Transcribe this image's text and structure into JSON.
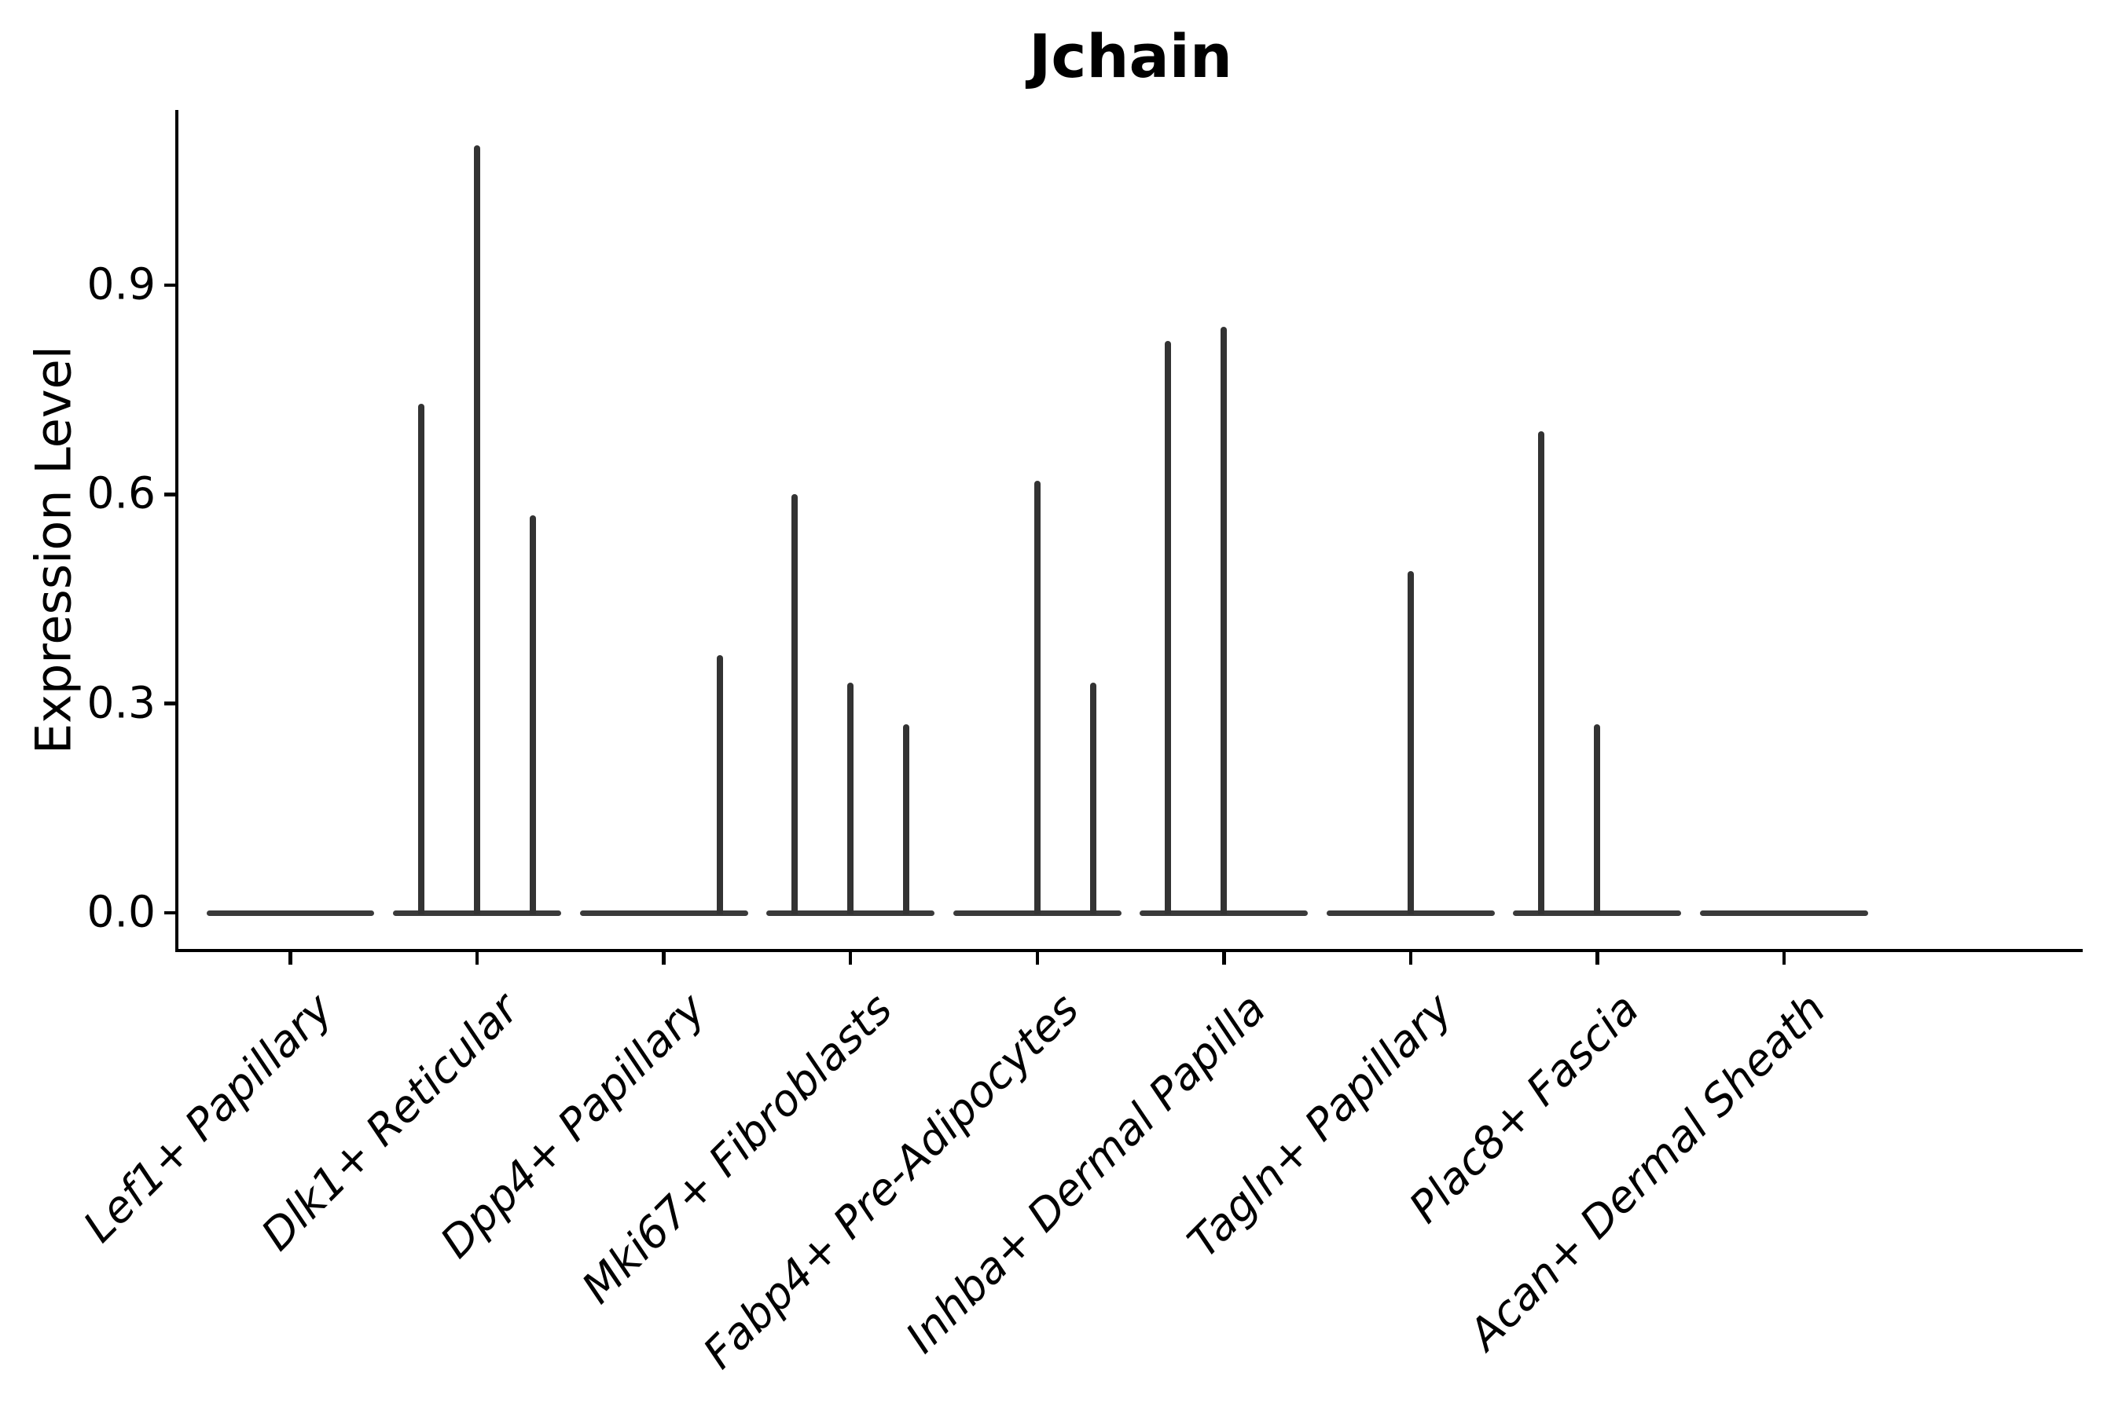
{
  "title": "Jchain",
  "y_axis": {
    "label": "Expression Level",
    "tick_labels": [
      "0.0",
      "0.3",
      "0.6",
      "0.9"
    ]
  },
  "chart_data": {
    "type": "violin",
    "title": "Jchain",
    "ylabel": "Expression Level",
    "xlabel": "",
    "yticks": [
      0.0,
      0.3,
      0.6,
      0.9
    ],
    "ylim": [
      -0.054,
      1.151
    ],
    "grid": false,
    "legend": "none",
    "violin_outline_color": "#3a3a3a",
    "axis_color": "#000000",
    "violin_width_units": 0.9,
    "sub_violin_offsets": [
      -0.3,
      0,
      0.3
    ],
    "categories": [
      "Lef1+ Papillary",
      "Dlk1+ Reticular",
      "Dpp4+ Papillary",
      "Mki67+ Fibroblasts",
      "Fabp4+ Pre-Adipocytes",
      "Inhba+ Dermal Papilla",
      "Tagln+ Papillary",
      "Plac8+ Fascia",
      "Acan+ Dermal Sheath"
    ],
    "violins": [
      {
        "category": "Lef1+ Papillary",
        "spikes": []
      },
      {
        "category": "Dlk1+ Reticular",
        "spikes": [
          {
            "offset": -0.3,
            "value": 0.73
          },
          {
            "offset": 0,
            "value": 1.1
          },
          {
            "offset": 0.3,
            "value": 0.57
          }
        ]
      },
      {
        "category": "Dpp4+ Papillary",
        "spikes": [
          {
            "offset": 0.3,
            "value": 0.37
          }
        ]
      },
      {
        "category": "Mki67+ Fibroblasts",
        "spikes": [
          {
            "offset": -0.3,
            "value": 0.6
          },
          {
            "offset": 0,
            "value": 0.33
          },
          {
            "offset": 0.3,
            "value": 0.27
          }
        ]
      },
      {
        "category": "Fabp4+ Pre-Adipocytes",
        "spikes": [
          {
            "offset": 0,
            "value": 0.62
          },
          {
            "offset": 0.3,
            "value": 0.33
          }
        ]
      },
      {
        "category": "Inhba+ Dermal Papilla",
        "spikes": [
          {
            "offset": -0.3,
            "value": 0.82
          },
          {
            "offset": 0,
            "value": 0.84
          }
        ]
      },
      {
        "category": "Tagln+ Papillary",
        "spikes": [
          {
            "offset": 0,
            "value": 0.49
          }
        ]
      },
      {
        "category": "Plac8+ Fascia",
        "spikes": [
          {
            "offset": -0.3,
            "value": 0.69
          },
          {
            "offset": 0,
            "value": 0.27
          }
        ]
      },
      {
        "category": "Acan+ Dermal Sheath",
        "spikes": []
      }
    ]
  }
}
